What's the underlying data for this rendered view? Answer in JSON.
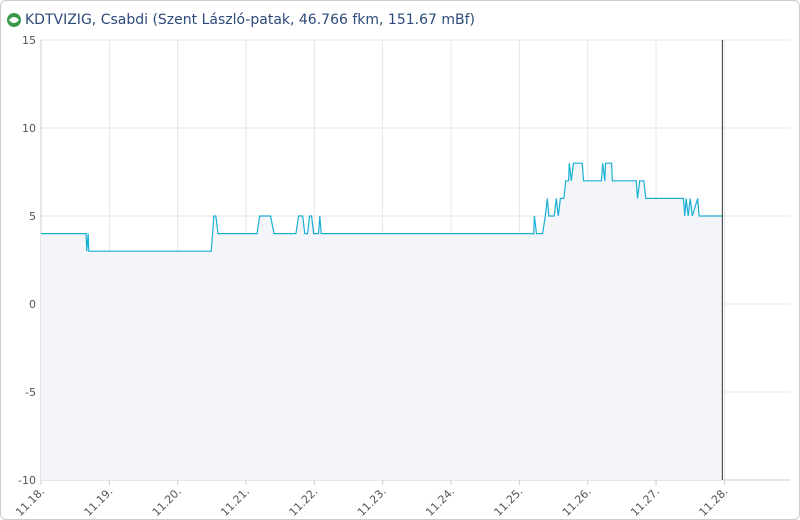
{
  "chart_data": {
    "type": "line",
    "title": "KDTVIZIG, Csabdi (Szent László-patak, 46.766 fkm, 151.67 mBf)",
    "x": [
      18.0,
      18.66,
      18.67,
      18.69,
      18.7,
      20.49,
      20.53,
      20.56,
      20.59,
      21.16,
      21.2,
      21.36,
      21.41,
      21.73,
      21.77,
      21.83,
      21.86,
      21.9,
      21.93,
      21.96,
      21.99,
      22.06,
      22.08,
      22.1,
      25.21,
      25.22,
      25.25,
      25.34,
      25.38,
      25.41,
      25.43,
      25.51,
      25.54,
      25.57,
      25.6,
      25.65,
      25.68,
      25.72,
      25.73,
      25.76,
      25.79,
      25.92,
      25.94,
      26.2,
      26.22,
      26.25,
      26.26,
      26.35,
      26.36,
      26.71,
      26.73,
      26.76,
      26.82,
      26.85,
      27.4,
      27.42,
      27.44,
      27.47,
      27.5,
      27.53,
      27.61,
      27.63,
      27.97
    ],
    "series": [
      {
        "color": "#1ab0d4",
        "values": [
          4,
          4,
          3,
          4,
          3,
          3,
          5,
          5,
          4,
          4,
          5,
          5,
          4,
          4,
          5,
          5,
          4,
          4,
          5,
          5,
          4,
          4,
          5,
          4,
          4,
          5,
          4,
          4,
          5,
          6,
          5,
          5,
          6,
          5,
          6,
          6,
          7,
          7,
          8,
          7,
          8,
          8,
          7,
          7,
          8,
          7,
          8,
          8,
          7,
          7,
          6,
          7,
          7,
          6,
          6,
          5,
          6,
          5,
          6,
          5,
          6,
          5,
          5
        ]
      }
    ],
    "area_color": "#f3f5f9",
    "xlim": [
      18,
      28.96
    ],
    "xticks": [
      {
        "value": 18,
        "label": "11.18."
      },
      {
        "value": 19,
        "label": "11.19."
      },
      {
        "value": 20,
        "label": "11.20."
      },
      {
        "value": 21,
        "label": "11.21."
      },
      {
        "value": 22,
        "label": "11.22."
      },
      {
        "value": 23,
        "label": "11.23."
      },
      {
        "value": 24,
        "label": "11.24."
      },
      {
        "value": 25,
        "label": "11.25."
      },
      {
        "value": 26,
        "label": "11.26."
      },
      {
        "value": 27,
        "label": "11.27."
      },
      {
        "value": 28,
        "label": "11.28."
      }
    ],
    "ylim": [
      -10,
      15
    ],
    "yticks": [
      15,
      10,
      5,
      0,
      -5,
      -10
    ],
    "grid": true
  }
}
